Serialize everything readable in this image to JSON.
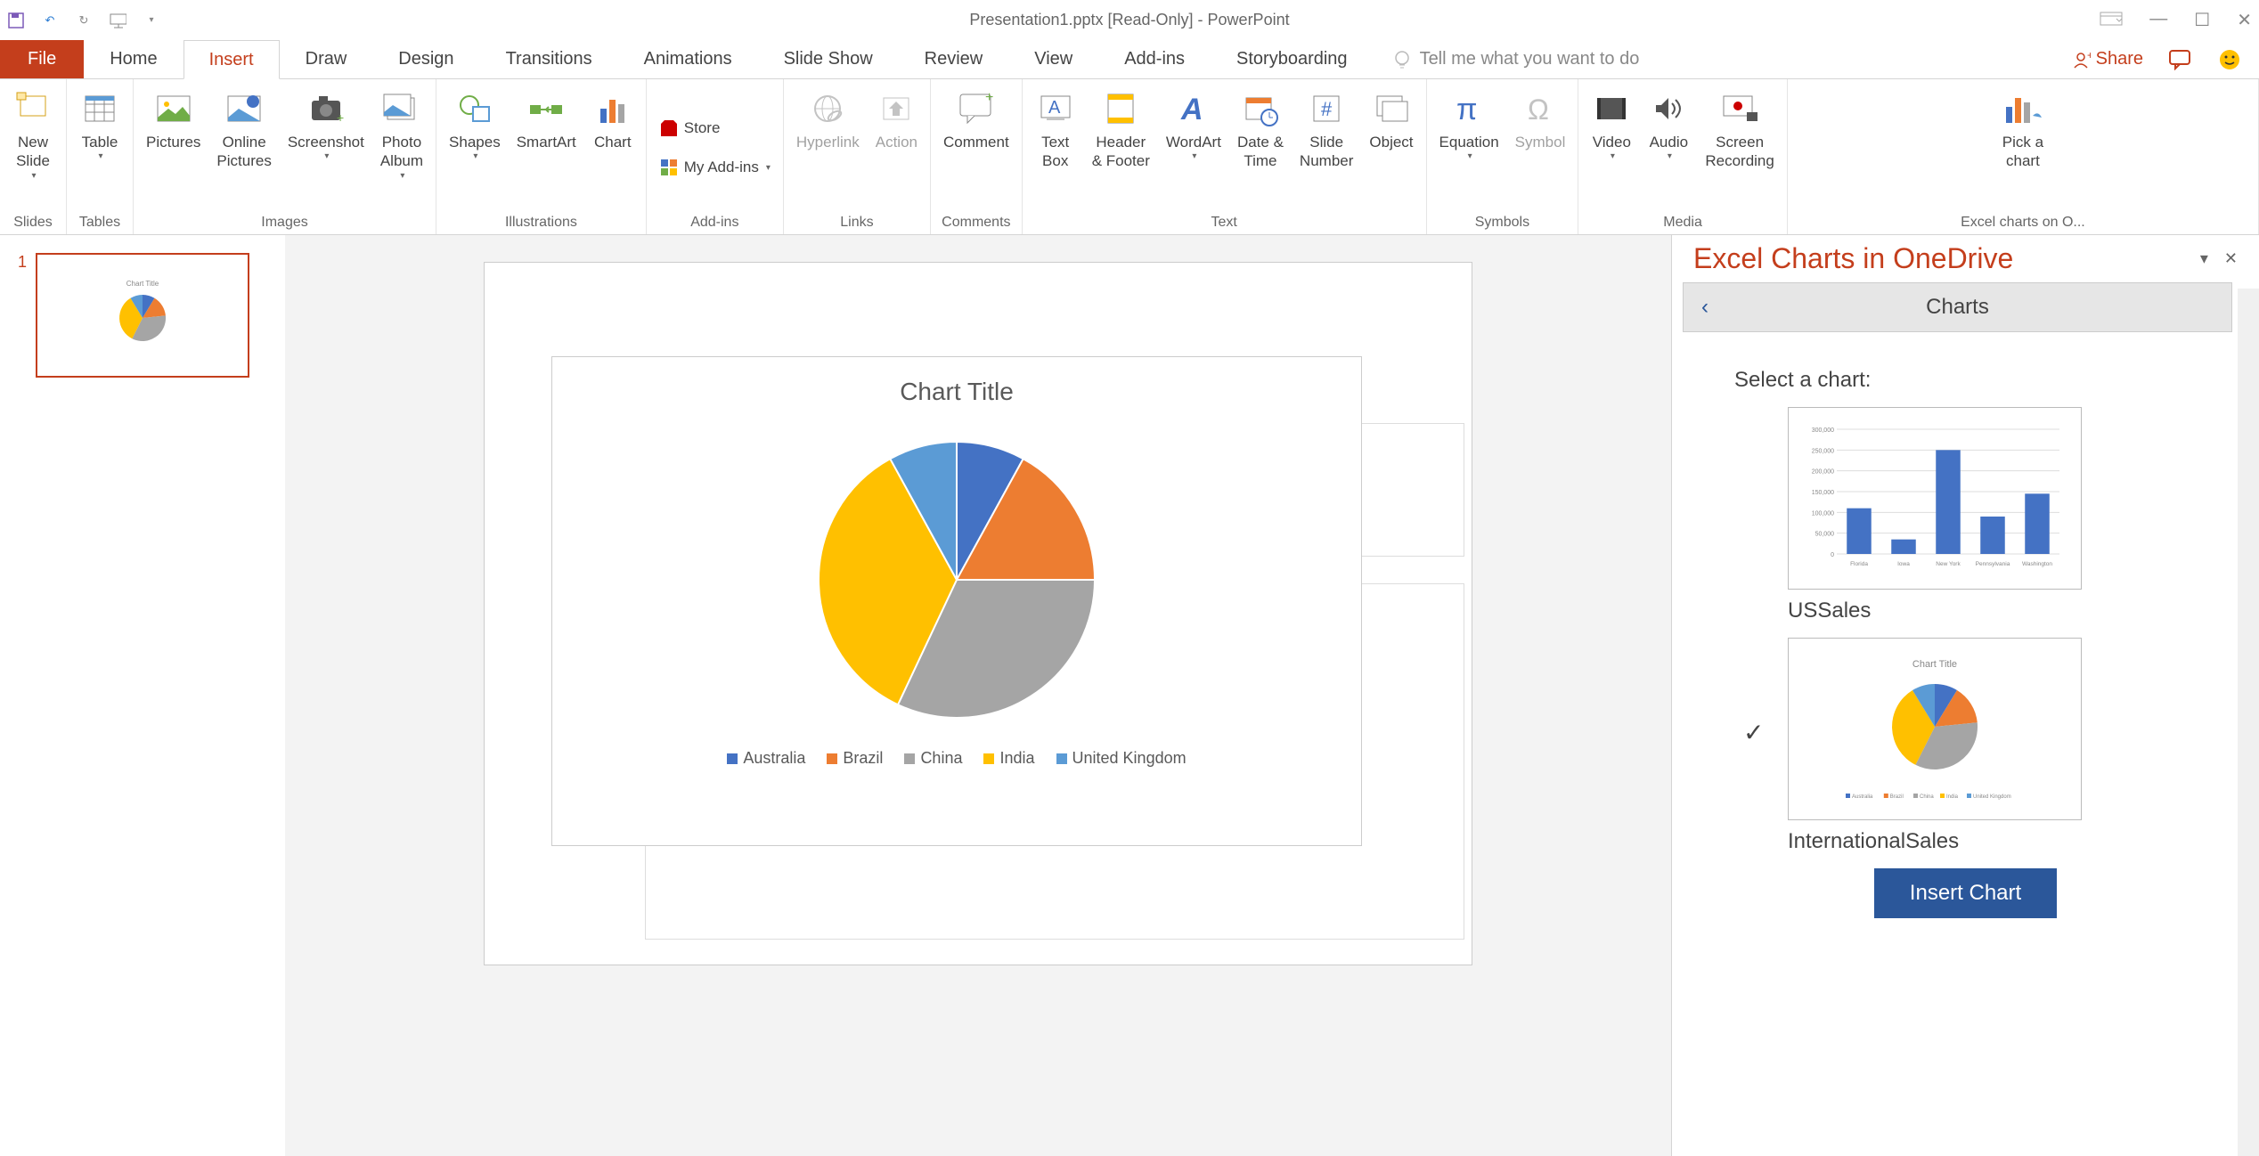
{
  "title": "Presentation1.pptx [Read-Only] - PowerPoint",
  "tabs": {
    "file": "File",
    "list": [
      "Home",
      "Insert",
      "Draw",
      "Design",
      "Transitions",
      "Animations",
      "Slide Show",
      "Review",
      "View",
      "Add-ins",
      "Storyboarding"
    ],
    "active": "Insert",
    "tellme": "Tell me what you want to do",
    "share": "Share"
  },
  "ribbon": {
    "groups": {
      "slides": {
        "label": "Slides",
        "new_slide": "New\nSlide"
      },
      "tables": {
        "label": "Tables",
        "table": "Table"
      },
      "images": {
        "label": "Images",
        "pictures": "Pictures",
        "online_pictures": "Online\nPictures",
        "screenshot": "Screenshot",
        "photo_album": "Photo\nAlbum"
      },
      "illustrations": {
        "label": "Illustrations",
        "shapes": "Shapes",
        "smartart": "SmartArt",
        "chart": "Chart"
      },
      "addins": {
        "label": "Add-ins",
        "store": "Store",
        "my_addins": "My Add-ins"
      },
      "links": {
        "label": "Links",
        "hyperlink": "Hyperlink",
        "action": "Action"
      },
      "comments": {
        "label": "Comments",
        "comment": "Comment"
      },
      "text": {
        "label": "Text",
        "text_box": "Text\nBox",
        "header_footer": "Header\n& Footer",
        "wordart": "WordArt",
        "date_time": "Date &\nTime",
        "slide_number": "Slide\nNumber",
        "object": "Object"
      },
      "symbols": {
        "label": "Symbols",
        "equation": "Equation",
        "symbol": "Symbol"
      },
      "media": {
        "label": "Media",
        "video": "Video",
        "audio": "Audio",
        "screen_recording": "Screen\nRecording"
      },
      "excel_charts": {
        "label": "Excel charts on O...",
        "pick_a_chart": "Pick a\nchart"
      }
    }
  },
  "slides_panel": {
    "slide1_num": "1"
  },
  "chart": {
    "title": "Chart Title",
    "type": "pie",
    "series": [
      {
        "label": "Australia",
        "value": 8,
        "color": "#4472c4"
      },
      {
        "label": "Brazil",
        "value": 17,
        "color": "#ed7d31"
      },
      {
        "label": "China",
        "value": 32,
        "color": "#a5a5a5"
      },
      {
        "label": "India",
        "value": 35,
        "color": "#ffc000"
      },
      {
        "label": "United Kingdom",
        "value": 8,
        "color": "#5b9bd5"
      }
    ],
    "title_fontsize": 28,
    "title_color": "#595959",
    "legend_fontsize": 18,
    "background_color": "#ffffff"
  },
  "taskpane": {
    "title": "Excel Charts in OneDrive",
    "header": "Charts",
    "prompt": "Select a chart:",
    "options": [
      {
        "name": "USSales",
        "type": "bar",
        "selected": false,
        "categories": [
          "Florida",
          "Iowa",
          "New York",
          "Pennsylvania",
          "Washington"
        ],
        "values": [
          110000,
          35000,
          250000,
          90000,
          145000
        ],
        "bar_color": "#4472c4",
        "ytick_step": 50000,
        "ylim": [
          0,
          300000
        ]
      },
      {
        "name": "InternationalSales",
        "type": "pie",
        "selected": true
      }
    ],
    "insert_button": "Insert Chart"
  },
  "icons": {
    "colors": {
      "blue": "#4472c4",
      "orange": "#ed7d31",
      "gray": "#a5a5a5",
      "accent": "#2b579a",
      "ppt": "#c43e1c"
    }
  }
}
